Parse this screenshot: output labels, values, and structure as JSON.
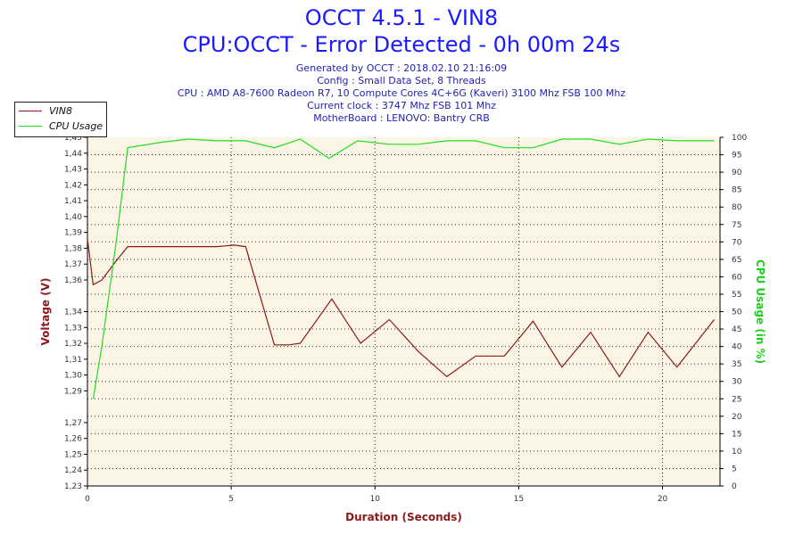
{
  "header": {
    "title": "OCCT 4.5.1 - VIN8",
    "subtitle": "CPU:OCCT - Error Detected - 0h 00m 24s",
    "info": [
      "Generated by OCCT : 2018.02.10 21:16:09",
      "Config : Small Data Set, 8 Threads",
      "CPU : AMD A8-7600 Radeon R7, 10 Compute Cores 4C+6G (Kaveri) 3100 Mhz FSB 100 Mhz",
      "Current clock : 3747 Mhz FSB 101 Mhz",
      "MotherBoard : LENOVO: Bantry CRB"
    ]
  },
  "colors": {
    "vin8": "#8b1a1a",
    "cpu": "#22dd22",
    "plot_bg": "#fbf5e6",
    "grid": "#333333",
    "ylabel_left": "#8b1a1a",
    "ylabel_right": "#22cc22"
  },
  "chart_data": {
    "type": "line",
    "xlabel": "Duration (Seconds)",
    "ylabel": "Voltage (V)",
    "ylabel_right": "CPU Usage (in %)",
    "xlim": [
      0,
      22
    ],
    "ylim": [
      1.23,
      1.45
    ],
    "ylim_right": [
      0,
      100
    ],
    "x_ticks": [
      0,
      5,
      10,
      15,
      20
    ],
    "x_tick_labels": [
      "0",
      "5",
      "10",
      "15",
      "20"
    ],
    "y_ticks": [
      1.23,
      1.24,
      1.25,
      1.26,
      1.27,
      1.29,
      1.3,
      1.31,
      1.32,
      1.33,
      1.34,
      1.36,
      1.37,
      1.38,
      1.39,
      1.4,
      1.41,
      1.42,
      1.43,
      1.44,
      1.45
    ],
    "y_tick_labels": [
      "1,23",
      "1,24",
      "1,25",
      "1,26",
      "1,27",
      "1,29",
      "1,30",
      "1,31",
      "1,32",
      "1,33",
      "1,34",
      "1,36",
      "1,37",
      "1,38",
      "1,39",
      "1,40",
      "1,41",
      "1,42",
      "1,43",
      "1,44",
      "1,45"
    ],
    "y_right_ticks": [
      0,
      5,
      10,
      15,
      20,
      25,
      30,
      35,
      40,
      45,
      50,
      55,
      60,
      65,
      70,
      75,
      80,
      85,
      90,
      95,
      100
    ],
    "grid": true,
    "legend_position": "top-left",
    "series": [
      {
        "name": "VIN8",
        "axis": "left",
        "x": [
          0,
          0.2,
          0.5,
          1.0,
          1.4,
          2.5,
          4.5,
          5.1,
          5.5,
          6.5,
          7.0,
          7.4,
          8.5,
          9.5,
          10.5,
          11.5,
          12.5,
          13.5,
          14.5,
          15.5,
          16.5,
          17.5,
          18.5,
          19.5,
          20.5,
          21.8
        ],
        "values": [
          1.386,
          1.357,
          1.36,
          1.372,
          1.381,
          1.381,
          1.381,
          1.382,
          1.381,
          1.319,
          1.319,
          1.32,
          1.348,
          1.32,
          1.335,
          1.315,
          1.299,
          1.312,
          1.312,
          1.334,
          1.305,
          1.327,
          1.299,
          1.327,
          1.305,
          1.335
        ]
      },
      {
        "name": "CPU Usage",
        "axis": "right",
        "x": [
          0.2,
          0.5,
          1.0,
          1.4,
          2.5,
          3.5,
          4.5,
          5.5,
          6.5,
          7.4,
          8.4,
          9.4,
          10.5,
          11.5,
          12.5,
          13.5,
          14.5,
          15.5,
          16.5,
          17.5,
          18.5,
          19.5,
          20.5,
          21.8
        ],
        "values": [
          25,
          40,
          70,
          97,
          98.5,
          99.5,
          99,
          99,
          97,
          99.5,
          94,
          99,
          98,
          98,
          99,
          99,
          97,
          97,
          99.5,
          99.5,
          98,
          99.5,
          99,
          99
        ]
      }
    ]
  }
}
